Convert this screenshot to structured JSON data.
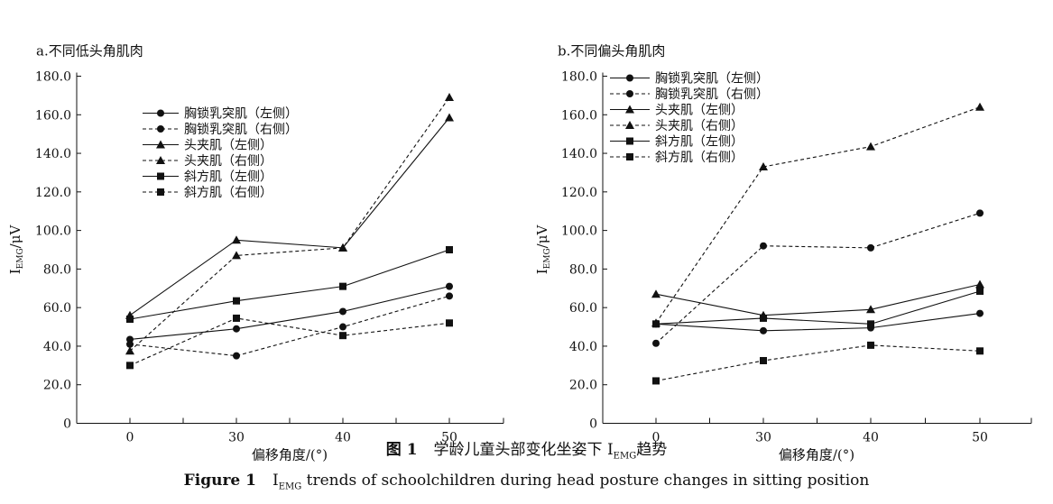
{
  "figure_caption_cn": {
    "label": "图 1",
    "text_before": "学龄儿童头部变化坐姿下 I",
    "sub": "EMG",
    "text_after": "趋势"
  },
  "figure_caption_en": {
    "label": "Figure 1",
    "text_before": "I",
    "sub": "EMG",
    "text_after": " trends of schoolchildren during head posture changes in sitting position"
  },
  "chart_data": [
    {
      "type": "line",
      "title": "a.不同低头角肌肉",
      "xlabel": "偏移角度/(°)",
      "ylabel": "I",
      "ylabel_sub": "EMG",
      "ylabel_unit": "/μV",
      "categories": [
        "0",
        "30",
        "40",
        "50"
      ],
      "ylim": [
        0,
        180
      ],
      "yticks": [
        "0",
        "20.0",
        "40.0",
        "60.0",
        "80.0",
        "100.0",
        "120.0",
        "140.0",
        "160.0",
        "180.0"
      ],
      "legend_position": "top-left",
      "series": [
        {
          "name": "胸锁乳突肌（左侧）",
          "marker": "circle",
          "dash": "solid",
          "values": [
            43.5,
            49,
            58,
            71
          ]
        },
        {
          "name": "胸锁乳突肌（右侧）",
          "marker": "circle",
          "dash": "dashed",
          "values": [
            41,
            35,
            50,
            66
          ]
        },
        {
          "name": "头夹肌（左侧）",
          "marker": "triangle",
          "dash": "solid",
          "values": [
            56,
            95,
            91,
            158.5
          ]
        },
        {
          "name": "头夹肌（右侧）",
          "marker": "triangle",
          "dash": "dashed",
          "values": [
            37.5,
            87,
            91,
            169
          ]
        },
        {
          "name": "斜方肌（左侧）",
          "marker": "square",
          "dash": "solid",
          "values": [
            54,
            63.5,
            71,
            90
          ]
        },
        {
          "name": "斜方肌（右侧）",
          "marker": "square",
          "dash": "dashed",
          "values": [
            30,
            54.5,
            45.5,
            52
          ]
        }
      ]
    },
    {
      "type": "line",
      "title": "b.不同偏头角肌肉",
      "xlabel": "偏移角度/(°)",
      "ylabel": "I",
      "ylabel_sub": "EMG",
      "ylabel_unit": "/μV",
      "categories": [
        "0",
        "30",
        "40",
        "50"
      ],
      "ylim": [
        0,
        180
      ],
      "yticks": [
        "0",
        "20.0",
        "40.0",
        "60.0",
        "80.0",
        "100.0",
        "120.0",
        "140.0",
        "160.0",
        "180.0"
      ],
      "legend_position": "top-left",
      "series": [
        {
          "name": "胸锁乳突肌（左侧）",
          "marker": "circle",
          "dash": "solid",
          "values": [
            51.5,
            48,
            49.5,
            57
          ]
        },
        {
          "name": "胸锁乳突肌（右侧）",
          "marker": "circle",
          "dash": "dashed",
          "values": [
            41.5,
            92,
            91,
            109
          ]
        },
        {
          "name": "头夹肌（左侧）",
          "marker": "triangle",
          "dash": "solid",
          "values": [
            67,
            56,
            59,
            72
          ]
        },
        {
          "name": "头夹肌（右侧）",
          "marker": "triangle",
          "dash": "dashed",
          "values": [
            52,
            133,
            143.5,
            164
          ]
        },
        {
          "name": "斜方肌（左侧）",
          "marker": "square",
          "dash": "solid",
          "values": [
            51.5,
            54.5,
            51.5,
            68.5
          ]
        },
        {
          "name": "斜方肌（右侧）",
          "marker": "square",
          "dash": "dashed",
          "values": [
            22,
            32.5,
            40.5,
            37.5
          ]
        }
      ]
    }
  ]
}
